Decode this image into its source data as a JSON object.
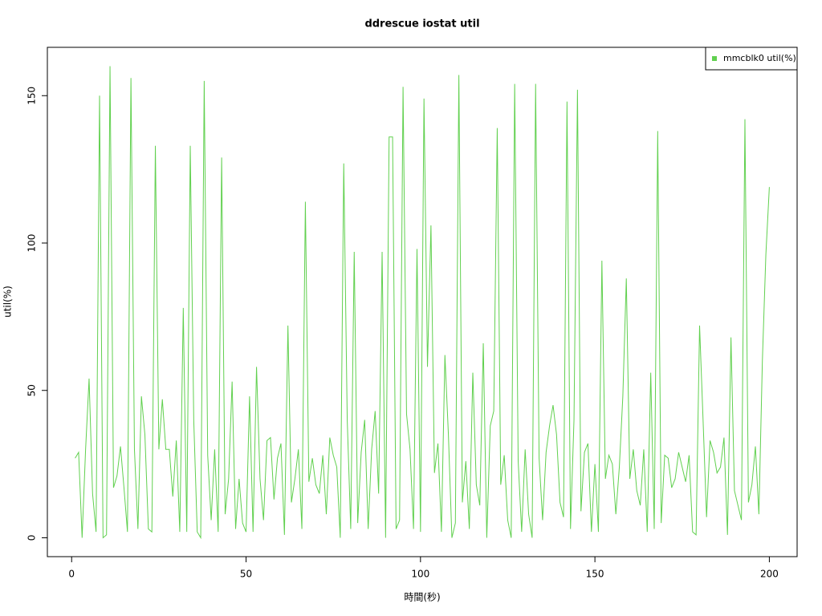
{
  "chart_data": {
    "type": "line",
    "title": "ddrescue iostat util",
    "x_label": "時間(秒)",
    "y_label": "util(%)",
    "x": [
      1,
      2,
      3,
      4,
      5,
      6,
      7,
      8,
      9,
      10,
      11,
      12,
      13,
      14,
      15,
      16,
      17,
      18,
      19,
      20,
      21,
      22,
      23,
      24,
      25,
      26,
      27,
      28,
      29,
      30,
      31,
      32,
      33,
      34,
      35,
      36,
      37,
      38,
      39,
      40,
      41,
      42,
      43,
      44,
      45,
      46,
      47,
      48,
      49,
      50,
      51,
      52,
      53,
      54,
      55,
      56,
      57,
      58,
      59,
      60,
      61,
      62,
      63,
      64,
      65,
      66,
      67,
      68,
      69,
      70,
      71,
      72,
      73,
      74,
      75,
      76,
      77,
      78,
      79,
      80,
      81,
      82,
      83,
      84,
      85,
      86,
      87,
      88,
      89,
      90,
      91,
      92,
      93,
      94,
      95,
      96,
      97,
      98,
      99,
      100,
      101,
      102,
      103,
      104,
      105,
      106,
      107,
      108,
      109,
      110,
      111,
      112,
      113,
      114,
      115,
      116,
      117,
      118,
      119,
      120,
      121,
      122,
      123,
      124,
      125,
      126,
      127,
      128,
      129,
      130,
      131,
      132,
      133,
      134,
      135,
      136,
      137,
      138,
      139,
      140,
      141,
      142,
      143,
      144,
      145,
      146,
      147,
      148,
      149,
      150,
      151,
      152,
      153,
      154,
      155,
      156,
      157,
      158,
      159,
      160,
      161,
      162,
      163,
      164,
      165,
      166,
      167,
      168,
      169,
      170,
      171,
      172,
      173,
      174,
      175,
      176,
      177,
      178,
      179,
      180,
      181,
      182,
      183,
      184,
      185,
      186,
      187,
      188,
      189,
      190,
      191,
      192,
      193,
      194,
      195,
      196,
      197,
      198,
      199,
      200
    ],
    "series": [
      {
        "name": "mmcblk0 util(%)",
        "color": "#61D04F",
        "values": [
          27,
          29,
          0,
          30,
          54,
          15,
          2,
          150,
          0,
          1,
          160,
          17,
          21,
          31,
          17,
          2,
          156,
          30,
          3,
          48,
          35,
          3,
          2,
          133,
          30,
          47,
          30,
          30,
          14,
          33,
          2,
          78,
          2,
          133,
          40,
          2,
          0,
          155,
          28,
          6,
          30,
          2,
          129,
          8,
          20,
          53,
          3,
          20,
          5,
          2,
          48,
          2,
          58,
          20,
          6,
          33,
          34,
          13,
          27,
          32,
          1,
          72,
          12,
          20,
          30,
          3,
          114,
          19,
          27,
          18,
          15,
          28,
          8,
          34,
          28,
          24,
          0,
          127,
          40,
          3,
          97,
          5,
          29,
          40,
          3,
          30,
          43,
          15,
          97,
          0,
          136,
          136,
          3,
          6,
          153,
          42,
          30,
          3,
          98,
          2,
          149,
          58,
          106,
          22,
          32,
          2,
          62,
          35,
          0,
          5,
          157,
          12,
          26,
          3,
          56,
          18,
          11,
          66,
          0,
          38,
          43,
          139,
          18,
          28,
          6,
          0,
          154,
          26,
          2,
          30,
          8,
          0,
          154,
          27,
          6,
          29,
          38,
          45,
          35,
          12,
          7,
          148,
          3,
          40,
          152,
          9,
          29,
          32,
          2,
          25,
          2,
          94,
          20,
          28,
          25,
          8,
          24,
          48,
          88,
          20,
          30,
          16,
          11,
          30,
          2,
          56,
          3,
          138,
          5,
          28,
          27,
          17,
          20,
          29,
          24,
          19,
          28,
          2,
          1,
          72,
          40,
          7,
          33,
          29,
          22,
          24,
          34,
          1,
          68,
          16,
          11,
          6,
          142,
          12,
          18,
          31,
          8,
          60,
          96,
          119
        ]
      }
    ],
    "xlim": [
      -6.96,
      207.96
    ],
    "ylim": [
      -6.4,
      166.4
    ],
    "xticks": [
      0,
      50,
      100,
      150,
      200
    ],
    "yticks": [
      0,
      50,
      100,
      150
    ],
    "legend": "top-right"
  }
}
